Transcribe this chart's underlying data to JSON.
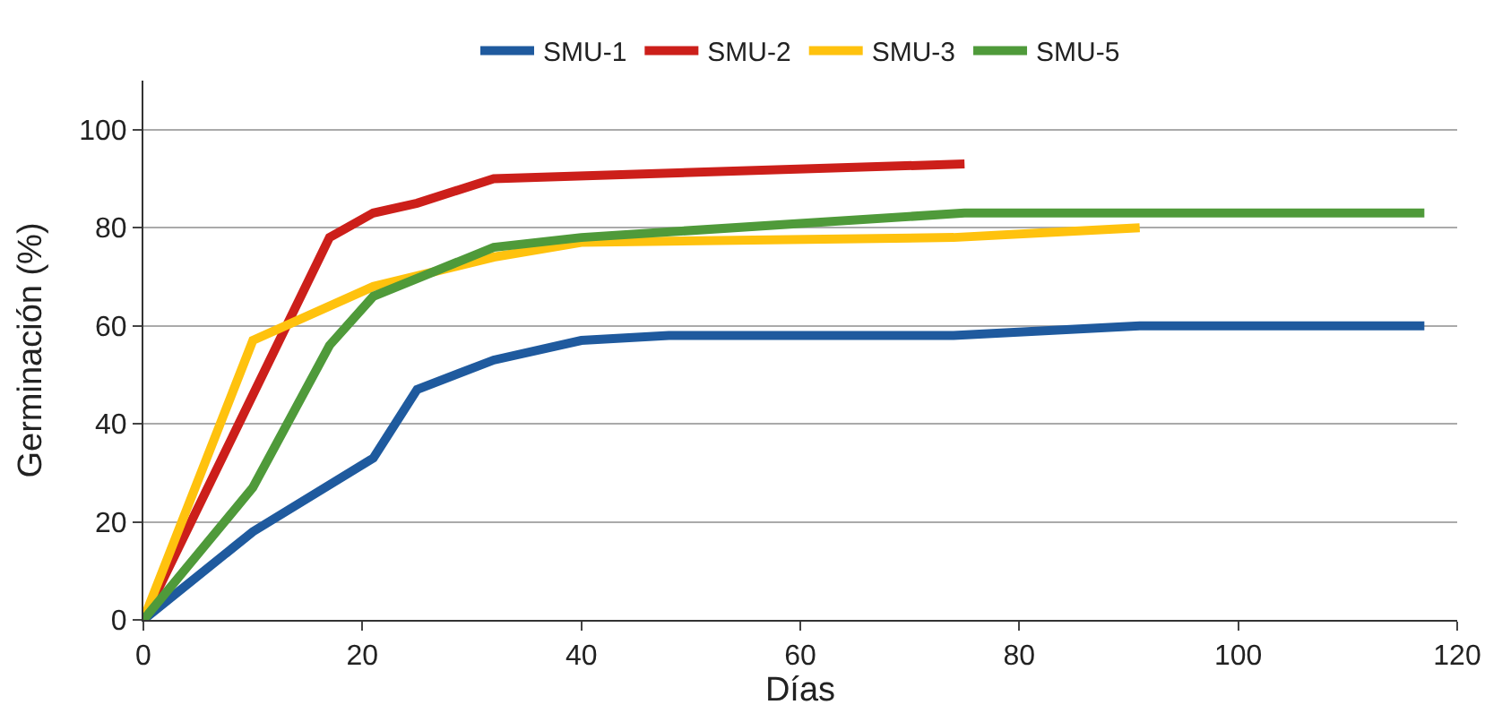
{
  "chart_data": {
    "type": "line",
    "xlabel": "Días",
    "ylabel": "Germinación (%)",
    "xlim": [
      0,
      120
    ],
    "xticks": [
      0,
      20,
      40,
      60,
      80,
      100,
      120
    ],
    "ylim": [
      0,
      110
    ],
    "yticks": [
      0,
      20,
      40,
      60,
      80,
      100
    ],
    "grid": "y",
    "legend": "top",
    "marker": "none",
    "line_style": "solid",
    "series": [
      {
        "name": "SMU-1",
        "color": "#1f5a9e",
        "x": [
          0,
          10,
          21,
          25,
          32,
          40,
          48,
          74,
          91,
          117
        ],
        "values": [
          0,
          18,
          33,
          47,
          53,
          57,
          58,
          58,
          60,
          60
        ]
      },
      {
        "name": "SMU-2",
        "color": "#cc1f1a",
        "x": [
          0,
          17,
          21,
          25,
          32,
          75
        ],
        "values": [
          0,
          78,
          83,
          85,
          90,
          93
        ]
      },
      {
        "name": "SMU-3",
        "color": "#ffc20e",
        "x": [
          0,
          10,
          21,
          32,
          40,
          74,
          91
        ],
        "values": [
          0,
          57,
          68,
          74,
          77,
          78,
          80
        ]
      },
      {
        "name": "SMU-5",
        "color": "#4f9a3a",
        "x": [
          0,
          10,
          17,
          21,
          32,
          40,
          75,
          117
        ],
        "values": [
          0,
          27,
          56,
          66,
          76,
          78,
          83,
          83
        ]
      }
    ]
  }
}
